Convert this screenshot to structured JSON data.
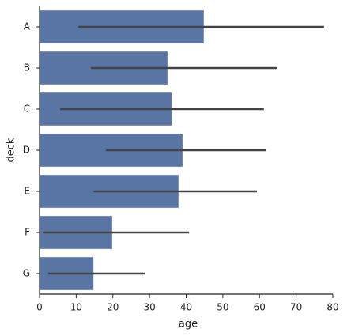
{
  "chart_data": {
    "type": "barh",
    "categories": [
      "A",
      "B",
      "C",
      "D",
      "E",
      "F",
      "G"
    ],
    "values": [
      44.8,
      34.9,
      36.0,
      39.0,
      37.9,
      19.8,
      14.7
    ],
    "error_low": [
      10.6,
      14.0,
      5.6,
      18.1,
      14.7,
      1.1,
      2.4
    ],
    "error_high": [
      77.6,
      64.9,
      61.2,
      61.7,
      59.3,
      40.8,
      28.7
    ],
    "color": "#5975a4",
    "error_color": "#444444",
    "xlabel": "age",
    "ylabel": "deck",
    "xlim": [
      0,
      80
    ],
    "xticks": [
      0,
      10,
      20,
      30,
      40,
      50,
      60,
      70,
      80
    ]
  }
}
